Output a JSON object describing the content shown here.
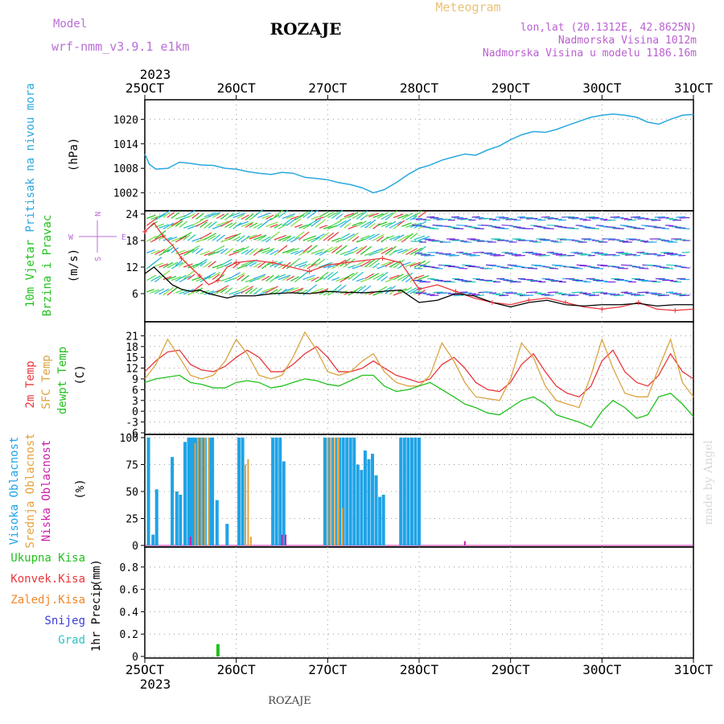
{
  "header": {
    "model_label": "Model",
    "model_name": "wrf-nmm_v3.9.1 e1km",
    "station": "ROZAJE",
    "title": "Meteogram",
    "coords": "lon,lat (20.1312E, 42.8625N)",
    "elevation": "Nadmorska Visina 1012m",
    "model_elevation": "Nadmorska Visina u modelu 1186.16m",
    "footer_station": "ROZAJE",
    "credit": "made by Angel"
  },
  "colors": {
    "pressure": "#29a8e0",
    "wind_speed": "#000000",
    "wind_gust": "#e8363c",
    "t2m": "#e8363c",
    "tsfc": "#d9a441",
    "dewpt": "#22c11e",
    "cloud_high": "#1fa3e6",
    "cloud_mid": "#e3a23c",
    "cloud_low": "#cc1fa8",
    "precip_total": "#22c11e",
    "precip_conv": "#e8363c",
    "precip_frz": "#f0872a",
    "precip_snow": "#3b3bd8",
    "precip_hail": "#2ec4c4"
  },
  "time_axis": {
    "year": "2023",
    "labels": [
      "25OCT",
      "26OCT",
      "27OCT",
      "28OCT",
      "29OCT",
      "30OCT",
      "31OCT"
    ]
  },
  "chart_data": [
    {
      "type": "line",
      "panel": "pressure",
      "ylabel": "Pritisak na nivou mora",
      "unit": "(hPa)",
      "yticks": [
        "1002",
        "1008",
        "1014",
        "1020"
      ],
      "ylim": [
        998,
        1024
      ],
      "x_days": [
        0,
        0.05,
        0.12,
        0.25,
        0.38,
        0.5,
        0.62,
        0.75,
        0.88,
        1.0,
        1.12,
        1.25,
        1.38,
        1.5,
        1.62,
        1.75,
        1.88,
        2.0,
        2.12,
        2.25,
        2.38,
        2.5,
        2.62,
        2.75,
        2.88,
        3.0,
        3.12,
        3.25,
        3.38,
        3.5,
        3.62,
        3.75,
        3.88,
        4.0,
        4.12,
        4.25,
        4.38,
        4.5,
        4.62,
        4.75,
        4.88,
        5.0,
        5.12,
        5.25,
        5.38,
        5.5,
        5.62,
        5.75,
        5.88,
        6.0
      ],
      "series": [
        {
          "values": [
            1011.5,
            1009,
            1007.8,
            1008,
            1009.5,
            1009.2,
            1008.8,
            1008.7,
            1008,
            1007.8,
            1007.2,
            1006.8,
            1006.5,
            1007,
            1006.8,
            1005.8,
            1005.5,
            1005.2,
            1004.5,
            1004,
            1003.2,
            1002,
            1002.8,
            1004.5,
            1006.5,
            1008,
            1008.8,
            1010,
            1010.8,
            1011.5,
            1011.2,
            1012.5,
            1013.5,
            1015,
            1016.2,
            1017,
            1016.8,
            1017.5,
            1018.5,
            1019.5,
            1020.5,
            1021,
            1021.3,
            1021,
            1020.5,
            1019.3,
            1018.8,
            1020,
            1021,
            1021.2
          ]
        }
      ]
    },
    {
      "type": "line",
      "panel": "wind",
      "ylabel_lines": [
        "10m Vjetar",
        "Brzina i Pravac"
      ],
      "unit": "(m/s)",
      "compass": {
        "n": "N",
        "s": "S",
        "w": "W",
        "e": "E"
      },
      "yticks": [
        "6",
        "12",
        "18",
        "24"
      ],
      "ylim": [
        0,
        24
      ],
      "x_days": [
        0,
        0.1,
        0.2,
        0.3,
        0.4,
        0.5,
        0.6,
        0.7,
        0.8,
        0.9,
        1.0,
        1.2,
        1.4,
        1.6,
        1.8,
        2.0,
        2.2,
        2.4,
        2.6,
        2.8,
        3.0,
        3.2,
        3.4,
        3.6,
        3.8,
        4.0,
        4.2,
        4.4,
        4.6,
        4.8,
        5.0,
        5.2,
        5.4,
        5.6,
        5.8,
        6.0
      ],
      "series": [
        {
          "name": "speed",
          "values": [
            10.5,
            12,
            10,
            8,
            7,
            6.5,
            6.8,
            6,
            5.5,
            5,
            5.5,
            5.5,
            6,
            6.2,
            6,
            6.5,
            6.3,
            6.2,
            6.5,
            6.8,
            4,
            4.5,
            6,
            5.5,
            4,
            3,
            4,
            4.5,
            3.5,
            3.2,
            3.5,
            3.5,
            3.8,
            3.2,
            3.5,
            3.5
          ]
        },
        {
          "name": "gust",
          "values": [
            20,
            22,
            19,
            17,
            14,
            12,
            10,
            8,
            9,
            12,
            13,
            13.5,
            13,
            12,
            11,
            12.5,
            13,
            13.5,
            14,
            13,
            7,
            8,
            6.5,
            5,
            4,
            3.5,
            4.5,
            5,
            4,
            3,
            2.5,
            3,
            4,
            2.5,
            2.2,
            2.5
          ]
        }
      ]
    },
    {
      "type": "line",
      "panel": "temperature",
      "ylabel_lines": [
        "2m Temp",
        "SFC Temp",
        "dewpt Temp"
      ],
      "unit": "(C)",
      "yticks": [
        "-6",
        "-3",
        "0",
        "3",
        "6",
        "9",
        "12",
        "15",
        "18",
        "21"
      ],
      "ylim": [
        -6,
        24
      ],
      "x_days": [
        0,
        0.12,
        0.25,
        0.38,
        0.5,
        0.62,
        0.75,
        0.88,
        1.0,
        1.12,
        1.25,
        1.38,
        1.5,
        1.62,
        1.75,
        1.88,
        2.0,
        2.12,
        2.25,
        2.38,
        2.5,
        2.62,
        2.75,
        2.88,
        3.0,
        3.12,
        3.25,
        3.38,
        3.5,
        3.62,
        3.75,
        3.88,
        4.0,
        4.12,
        4.25,
        4.38,
        4.5,
        4.62,
        4.75,
        4.88,
        5.0,
        5.12,
        5.25,
        5.38,
        5.5,
        5.62,
        5.75,
        5.88,
        6.0
      ],
      "series": [
        {
          "name": "2m Temp",
          "values": [
            11,
            14,
            16.5,
            17,
            13,
            11.5,
            11,
            12.5,
            15,
            17,
            15,
            11,
            11,
            13,
            16,
            18,
            15,
            11,
            11,
            12,
            14,
            12,
            10,
            9,
            8,
            9,
            13,
            15,
            12,
            8,
            6,
            5.5,
            8,
            13,
            16,
            11,
            7,
            5,
            4,
            7,
            14,
            17,
            11,
            8,
            7,
            10,
            16,
            11,
            9
          ]
        },
        {
          "name": "SFC Temp",
          "values": [
            9,
            13,
            20,
            15,
            10,
            9,
            10,
            14,
            20,
            16,
            10,
            9,
            10,
            15,
            22,
            17,
            11,
            10,
            11,
            14,
            16,
            11,
            8,
            7,
            7,
            10,
            19,
            14,
            8,
            4,
            3.5,
            3,
            9,
            19,
            15,
            7,
            3,
            2,
            1,
            10,
            20,
            12,
            5,
            4,
            4,
            12,
            20,
            8,
            4
          ]
        },
        {
          "name": "dewpt Temp",
          "values": [
            8,
            9,
            9.5,
            10,
            8,
            7.5,
            6.5,
            6.5,
            8,
            8.5,
            8,
            6.5,
            7,
            8,
            9,
            8.5,
            7.5,
            7,
            8.5,
            10,
            10,
            7,
            5.5,
            6,
            7,
            8,
            6,
            4,
            2,
            1,
            -0.5,
            -1,
            1,
            3,
            4,
            2,
            -1,
            -2,
            -3,
            -4.5,
            0,
            3,
            1,
            -2,
            -1,
            4,
            5,
            2,
            -1.5
          ]
        }
      ]
    },
    {
      "type": "bar",
      "panel": "clouds",
      "ylabel_lines": [
        "Visoka Oblacnost",
        "Srednja Oblacnost",
        "Niska Oblacnost"
      ],
      "unit": "(%)",
      "yticks": [
        "0",
        "25",
        "50",
        "75",
        "100"
      ],
      "ylim": [
        0,
        100
      ],
      "series": [
        {
          "name": "Visoka Oblacnost",
          "x_days": [
            0.04,
            0.09,
            0.13,
            0.3,
            0.35,
            0.39,
            0.44,
            0.48,
            0.51,
            0.54,
            0.57,
            0.6,
            0.63,
            0.66,
            0.71,
            0.74,
            0.79,
            0.9,
            1.03,
            1.07,
            1.4,
            1.44,
            1.48,
            1.52,
            1.97,
            2.01,
            2.05,
            2.09,
            2.13,
            2.17,
            2.21,
            2.25,
            2.29,
            2.33,
            2.37,
            2.41,
            2.45,
            2.49,
            2.53,
            2.57,
            2.61,
            2.8,
            2.84,
            2.88,
            2.92,
            2.96,
            3.0
          ],
          "values": [
            100,
            10,
            52,
            82,
            50,
            47,
            96,
            100,
            100,
            100,
            100,
            100,
            100,
            100,
            100,
            100,
            42,
            20,
            100,
            100,
            100,
            100,
            100,
            78,
            100,
            100,
            100,
            100,
            100,
            100,
            100,
            100,
            100,
            75,
            70,
            88,
            80,
            85,
            65,
            45,
            47,
            100,
            100,
            100,
            100,
            100,
            100
          ]
        },
        {
          "name": "Srednja Oblacnost",
          "x_days": [
            0.55,
            0.58,
            0.62,
            0.66,
            0.7,
            1.1,
            1.13,
            1.16,
            2.0,
            2.04,
            2.08,
            2.12,
            2.16
          ],
          "values": [
            95,
            100,
            100,
            100,
            100,
            75,
            80,
            8,
            100,
            100,
            100,
            100,
            35
          ]
        },
        {
          "name": "Niska Oblacnost",
          "x_days": [
            0.5,
            1.5,
            1.54,
            3.5
          ],
          "values": [
            8,
            10,
            10,
            4
          ]
        }
      ]
    },
    {
      "type": "bar",
      "panel": "precip",
      "ylabel": "1hr Precip",
      "unit": "(mm)",
      "legend": [
        "Ukupna Kisa",
        "Konvek.Kisa",
        "Zaledj.Kisa",
        "Snijeg",
        "Grad"
      ],
      "yticks": [
        "0",
        "0.2",
        "0.4",
        "0.6",
        "0.8"
      ],
      "ylim": [
        0,
        0.95
      ],
      "series": [
        {
          "name": "Ukupna Kisa",
          "x_days": [
            0.8
          ],
          "values": [
            0.11
          ]
        }
      ]
    }
  ]
}
